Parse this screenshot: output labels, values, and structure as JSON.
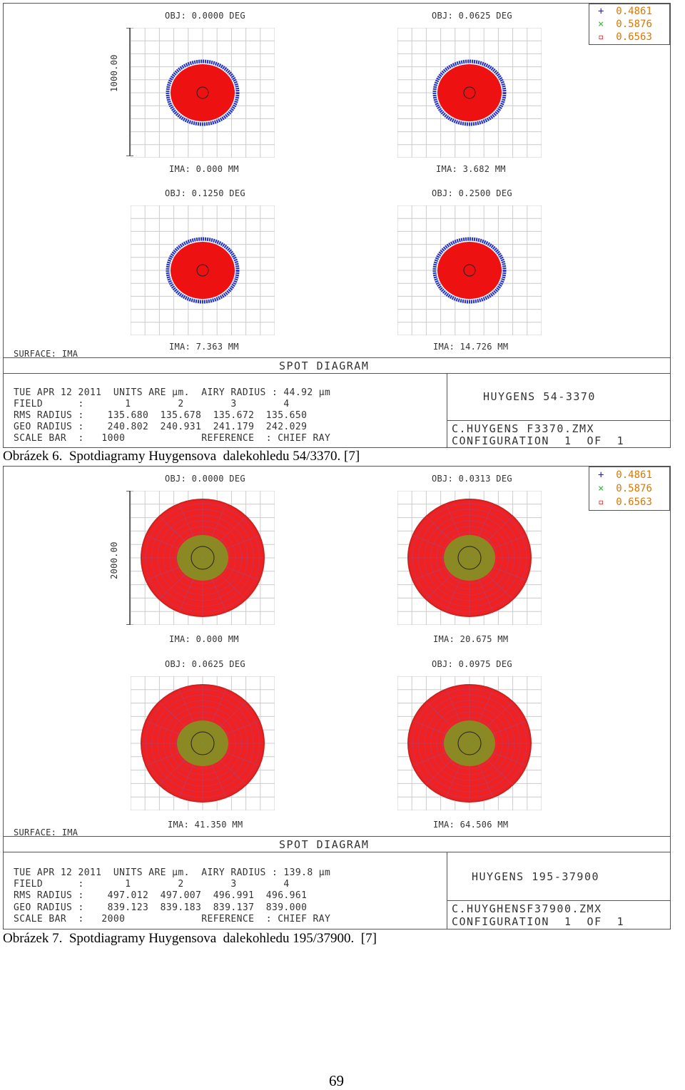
{
  "figures": [
    {
      "panels": [
        {
          "obj": "OBJ: 0.0000 DEG",
          "ima": "IMA: 0.000 MM"
        },
        {
          "obj": "OBJ: 0.0625 DEG",
          "ima": "IMA: 3.682 MM"
        },
        {
          "obj": "OBJ: 0.1250 DEG",
          "ima": "IMA: 7.363 MM"
        },
        {
          "obj": "OBJ: 0.2500 DEG",
          "ima": "IMA: 14.726 MM"
        }
      ],
      "scale_label": "1000.00",
      "surface": "SURFACE: IMA",
      "title": "SPOT DIAGRAM",
      "info_lines": [
        "TUE APR 12 2011  UNITS ARE µm.  AIRY RADIUS : 44.92 µm",
        "FIELD      :       1        2        3        4",
        "RMS RADIUS :    135.680  135.678  135.672  135.650",
        "GEO RADIUS :    240.802  240.931  241.179  242.029",
        "SCALE BAR  :   1000             REFERENCE  : CHIEF RAY"
      ],
      "design_name": "HUYGENS 54-3370",
      "file_name": "C.HUYGENS F3370.ZMX",
      "config": "CONFIGURATION  1  OF  1",
      "legend": [
        {
          "symbol": "+",
          "label": "0.4861",
          "color": "#2222cc"
        },
        {
          "symbol": "×",
          "label": "0.5876",
          "color": "#33bb33"
        },
        {
          "symbol": "▫",
          "label": "0.6563",
          "color": "#dd2222"
        }
      ],
      "caption": "Obrázek 6.  Spotdiagramy Huygensova  dalekohledu 54/3370. [7]"
    },
    {
      "panels": [
        {
          "obj": "OBJ: 0.0000 DEG",
          "ima": "IMA: 0.000 MM"
        },
        {
          "obj": "OBJ: 0.0313 DEG",
          "ima": "IMA: 20.675 MM"
        },
        {
          "obj": "OBJ: 0.0625 DEG",
          "ima": "IMA: 41.350 MM"
        },
        {
          "obj": "OBJ: 0.0975 DEG",
          "ima": "IMA: 64.506 MM"
        }
      ],
      "scale_label": "2000.00",
      "surface": "SURFACE: IMA",
      "title": "SPOT DIAGRAM",
      "info_lines": [
        "TUE APR 12 2011  UNITS ARE µm.  AIRY RADIUS : 139.8 µm",
        "FIELD      :       1        2        3        4",
        "RMS RADIUS :    497.012  497.007  496.991  496.961",
        "GEO RADIUS :    839.123  839.183  839.137  839.000",
        "SCALE BAR  :   2000             REFERENCE  : CHIEF RAY"
      ],
      "design_name": "HUYGENS 195-37900",
      "file_name": "C.HUYGHENSF37900.ZMX",
      "config": "CONFIGURATION  1  OF  1",
      "legend": [
        {
          "symbol": "+",
          "label": "0.4861",
          "color": "#2222cc"
        },
        {
          "symbol": "×",
          "label": "0.5876",
          "color": "#33bb33"
        },
        {
          "symbol": "▫",
          "label": "0.6563",
          "color": "#dd2222"
        }
      ],
      "caption": "Obrázek 7.  Spotdiagramy Huygensova  dalekohledu 195/37900.  [7]"
    }
  ],
  "page_number": "69"
}
